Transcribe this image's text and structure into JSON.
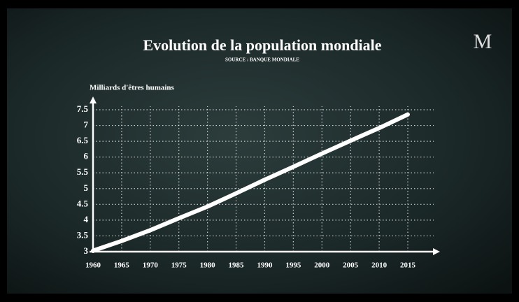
{
  "logo": "M",
  "chart_data": {
    "type": "line",
    "title": "Evolution de la population mondiale",
    "subtitle": "SOURCE : BANQUE MONDIALE",
    "y_label": "Milliards d'êtres humains",
    "x": [
      1960,
      1965,
      1970,
      1975,
      1980,
      1985,
      1990,
      1995,
      2000,
      2005,
      2010,
      2015
    ],
    "series": [
      {
        "name": "Population mondiale",
        "color": "#ffffff",
        "values": [
          3.03,
          3.34,
          3.68,
          4.06,
          4.43,
          4.85,
          5.28,
          5.69,
          6.11,
          6.52,
          6.92,
          7.35
        ]
      }
    ],
    "xlim": [
      1960,
      2015
    ],
    "xticks": [
      1960,
      1965,
      1970,
      1975,
      1980,
      1985,
      1990,
      1995,
      2000,
      2005,
      2010,
      2015
    ],
    "ylim": [
      3,
      7.5
    ],
    "yticks": [
      3,
      3.5,
      4,
      4.5,
      5,
      5.5,
      6,
      6.5,
      7,
      7.5
    ],
    "grid": true
  }
}
